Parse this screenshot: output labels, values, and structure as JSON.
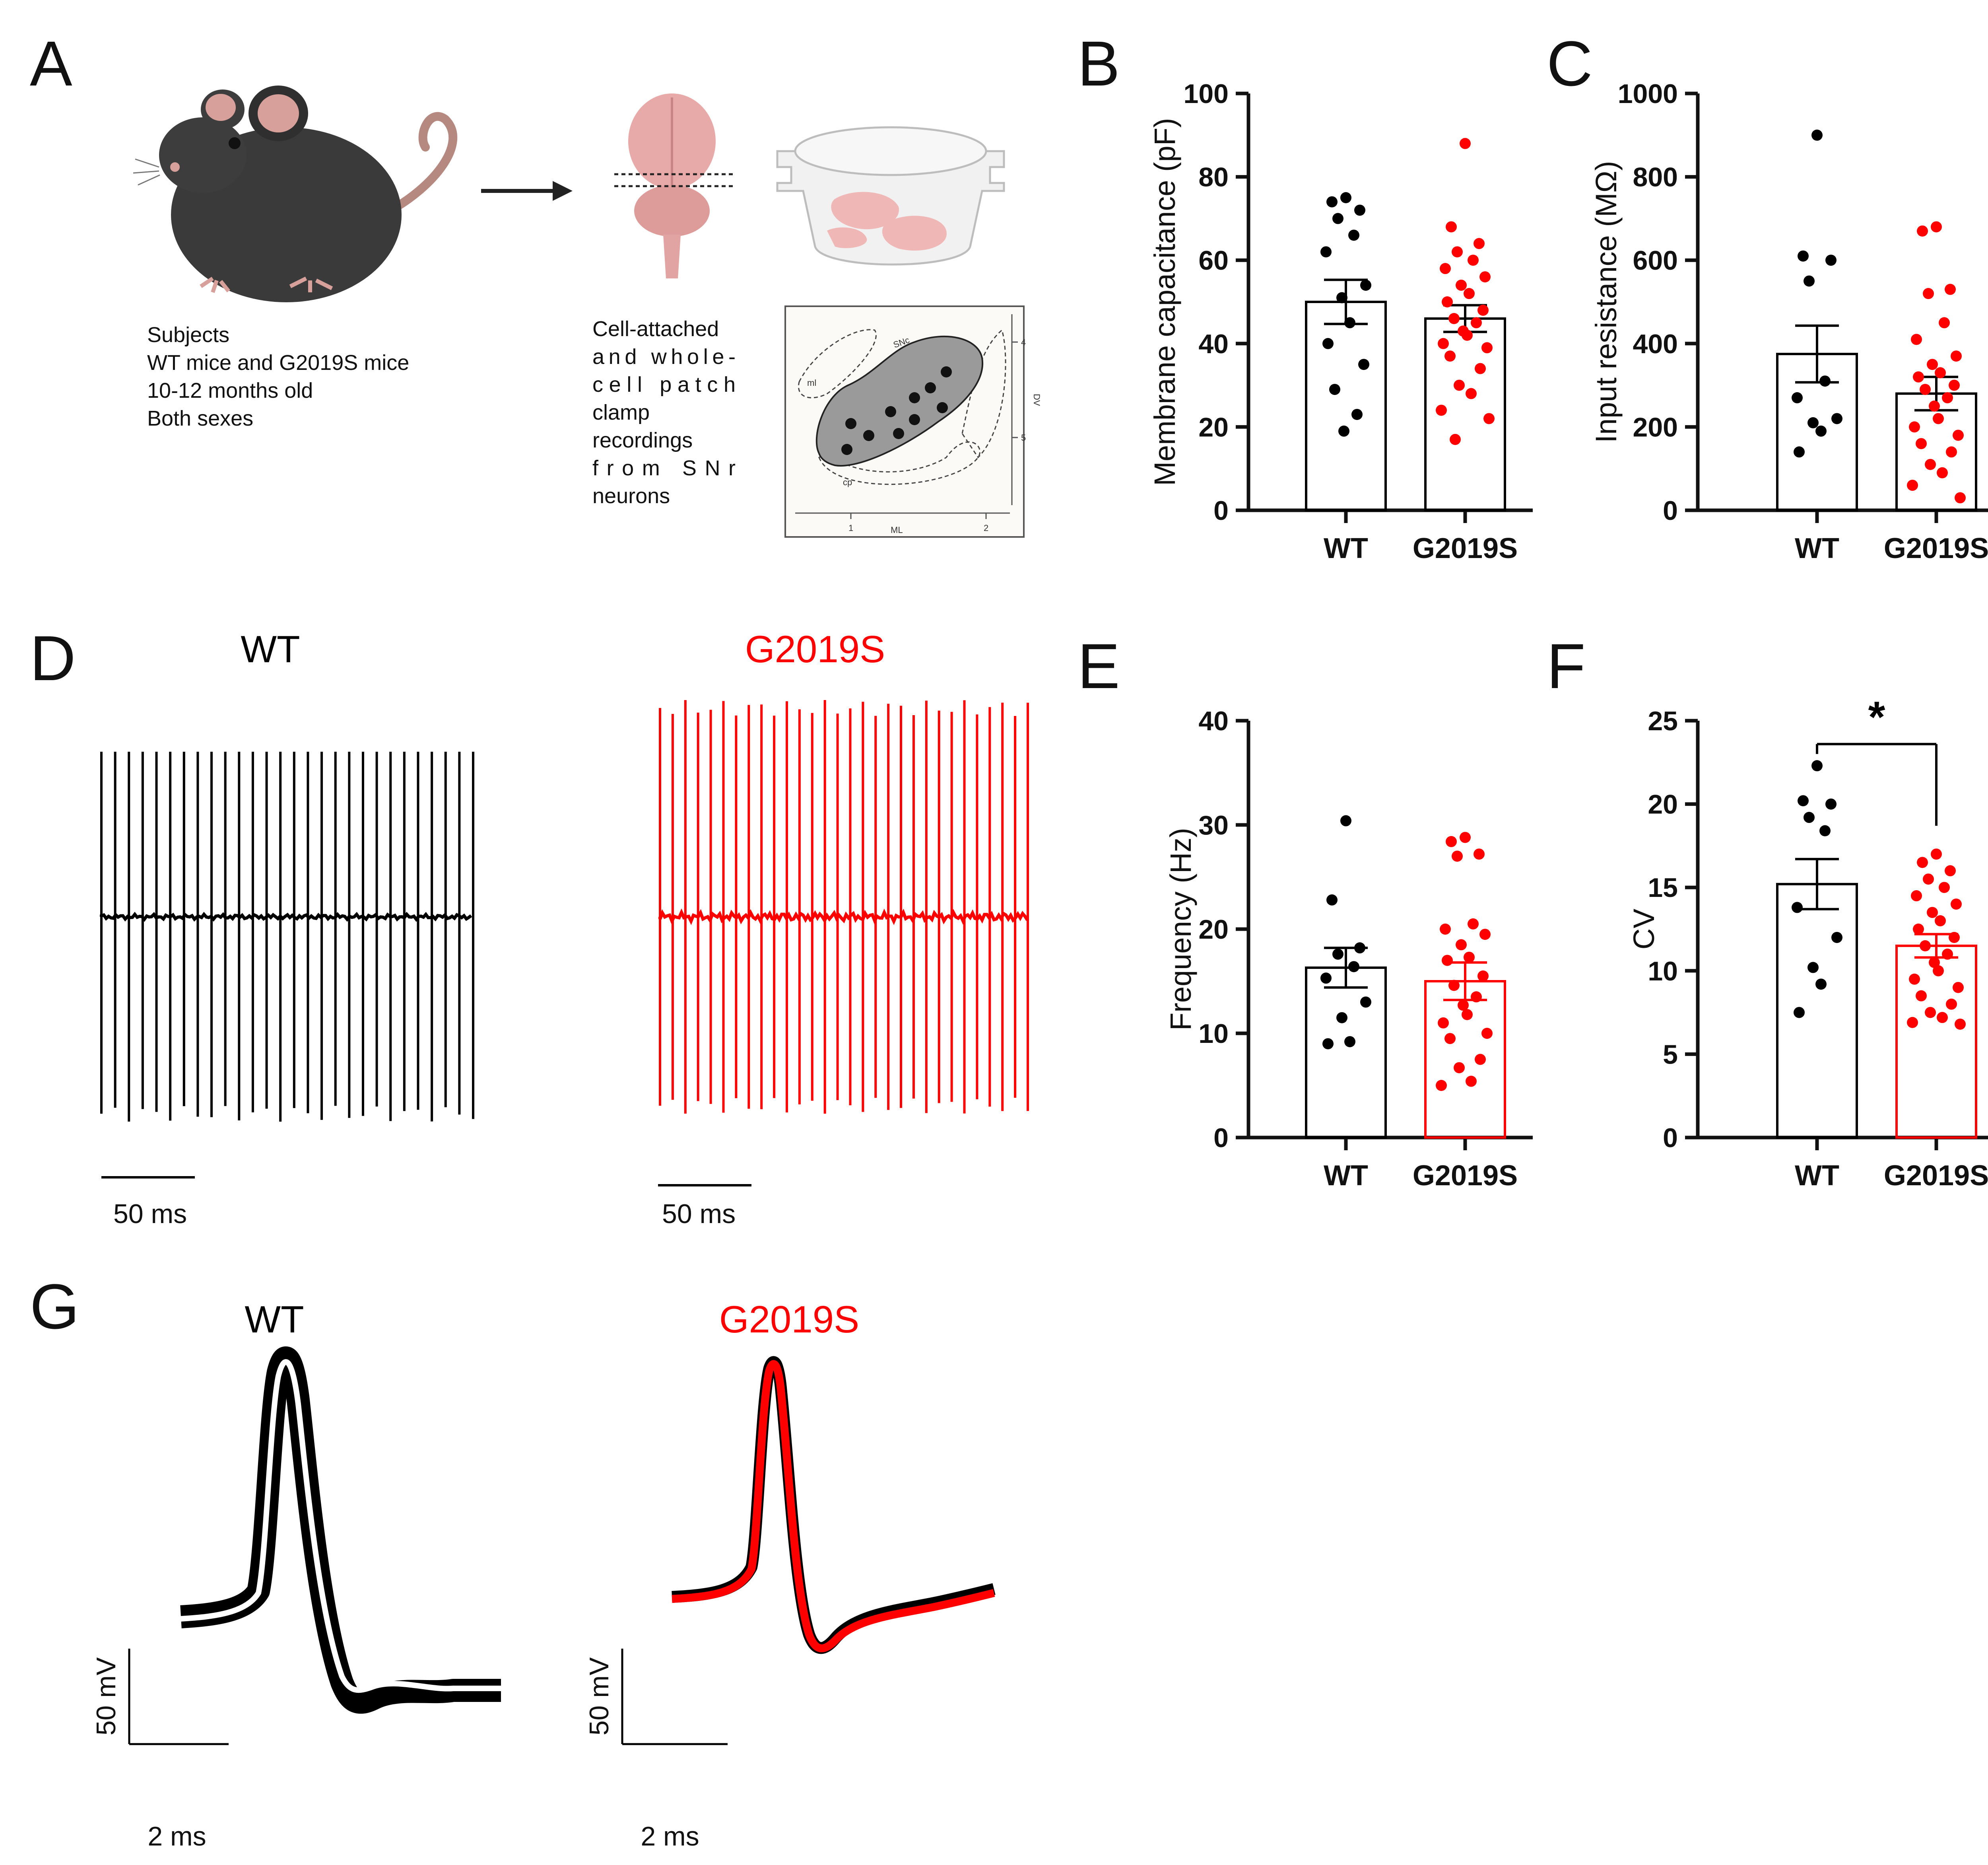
{
  "colors": {
    "wt": "#000000",
    "g2019s": "#ff0000",
    "axis": "#111111",
    "atlas_region": "#9a9a9a"
  },
  "panels": {
    "a": {
      "letter": "A",
      "subjects": [
        "Subjects",
        "WT mice and G2019S mice",
        "10-12 months old",
        "Both sexes"
      ],
      "recording": [
        "Cell-attached",
        "and whole-",
        "cell patch",
        "clamp",
        "recordings",
        "from SNr",
        "neurons"
      ],
      "atlas": {
        "snc": "SNc",
        "ml": "ml",
        "cp": "cp",
        "dv": "DV",
        "mlaxis": "ML",
        "x_ticks": [
          "1",
          "2"
        ],
        "y_ticks": [
          "4",
          "5"
        ]
      },
      "icons": [
        "mouse-icon",
        "arrow-icon",
        "brain-icon",
        "slice-chamber-icon"
      ]
    },
    "b": {
      "letter": "B"
    },
    "c": {
      "letter": "C"
    },
    "d": {
      "letter": "D",
      "wt_label": "WT",
      "g_label": "G2019S",
      "scale_wt": "50 ms",
      "scale_g": "50 ms"
    },
    "e": {
      "letter": "E"
    },
    "f": {
      "letter": "F",
      "significance": "*"
    },
    "g": {
      "letter": "G",
      "wt_label": "WT",
      "g_label": "G2019S",
      "scale_mv": "50 mV",
      "scale_ms": "2 ms",
      "scale_mv_2": "50 mV",
      "scale_ms_2": "2 ms"
    }
  },
  "chart_data": [
    {
      "id": "B",
      "type": "bar",
      "categories": [
        "WT",
        "G2019S"
      ],
      "ylabel": "Membrane capacitance (pF)",
      "ylim": [
        0,
        100
      ],
      "yticks": [
        0,
        20,
        40,
        60,
        80,
        100
      ],
      "means": [
        50,
        46
      ],
      "sem": [
        5.3,
        3.2
      ],
      "bar_colors": [
        "#000000",
        "#000000"
      ],
      "points": [
        [
          75,
          74,
          72,
          70,
          66,
          62,
          54,
          51,
          45,
          40,
          35,
          29,
          23,
          19
        ],
        [
          88,
          68,
          64,
          62,
          60,
          58,
          56,
          54,
          52,
          50,
          48,
          46,
          45,
          43,
          42,
          40,
          39,
          37,
          34,
          30,
          28,
          24,
          22,
          17
        ]
      ]
    },
    {
      "id": "C",
      "type": "bar",
      "categories": [
        "WT",
        "G2019S"
      ],
      "ylabel": "Input resistance (MΩ)",
      "ylim": [
        0,
        1000
      ],
      "yticks": [
        0,
        200,
        400,
        600,
        800,
        1000
      ],
      "means": [
        375,
        280
      ],
      "sem": [
        68,
        40
      ],
      "bar_colors": [
        "#000000",
        "#000000"
      ],
      "points": [
        [
          900,
          610,
          600,
          550,
          310,
          270,
          220,
          210,
          190,
          140
        ],
        [
          680,
          670,
          530,
          520,
          450,
          410,
          370,
          350,
          330,
          320,
          300,
          290,
          270,
          250,
          220,
          200,
          180,
          160,
          140,
          110,
          90,
          60,
          30
        ]
      ]
    },
    {
      "id": "E",
      "type": "bar",
      "categories": [
        "WT",
        "G2019S"
      ],
      "ylabel": "Frequency (Hz)",
      "ylim": [
        0,
        40
      ],
      "yticks": [
        0,
        10,
        20,
        30,
        40
      ],
      "means": [
        16.3,
        15.0
      ],
      "sem": [
        1.9,
        1.8
      ],
      "bar_colors": [
        "#000000",
        "#ff0000"
      ],
      "points": [
        [
          30.4,
          22.8,
          18.2,
          17.6,
          16.4,
          15.3,
          13.0,
          11.5,
          9.2,
          9.0
        ],
        [
          28.8,
          28.4,
          27.2,
          27.0,
          20.5,
          20.0,
          19.5,
          18.5,
          17.3,
          17.0,
          15.5,
          14.6,
          13.5,
          12.7,
          11.8,
          11.0,
          10.0,
          9.5,
          7.5,
          6.7,
          5.4,
          5.0
        ]
      ]
    },
    {
      "id": "F",
      "type": "bar",
      "categories": [
        "WT",
        "G2019S"
      ],
      "ylabel": "CV",
      "ylim": [
        0,
        25
      ],
      "yticks": [
        0,
        5,
        10,
        15,
        20,
        25
      ],
      "means": [
        15.2,
        11.5
      ],
      "sem": [
        1.5,
        0.7
      ],
      "bar_colors": [
        "#000000",
        "#ff0000"
      ],
      "significance": "*",
      "points": [
        [
          22.3,
          20.2,
          20.0,
          19.2,
          18.4,
          13.8,
          12.0,
          10.2,
          9.2,
          7.5
        ],
        [
          17.0,
          16.5,
          16.0,
          15.5,
          15.0,
          14.5,
          14.0,
          13.5,
          13.0,
          12.5,
          12.0,
          11.5,
          11.0,
          10.5,
          10.0,
          9.5,
          9.0,
          8.5,
          8.0,
          7.5,
          7.2,
          6.9,
          6.8
        ]
      ]
    }
  ]
}
